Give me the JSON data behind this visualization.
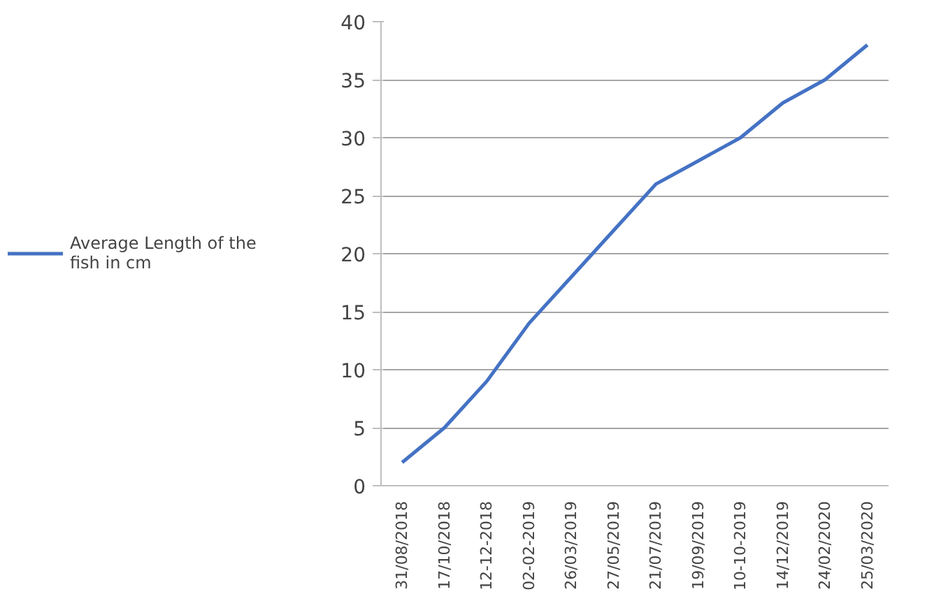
{
  "chart_data": {
    "type": "line",
    "categories": [
      "31/08/2018",
      "17/10/2018",
      "12-12-2018",
      "02-02-2019",
      "26/03/2019",
      "27/05/2019",
      "21/07/2019",
      "19/09/2019",
      "10-10-2019",
      "14/12/2019",
      "24/02/2020",
      "25/03/2020"
    ],
    "series": [
      {
        "name": "Average Length of the fish in cm",
        "color": "#4472c4",
        "values": [
          2,
          5,
          9,
          14,
          18,
          22,
          26,
          28,
          30,
          33,
          35,
          38
        ]
      }
    ],
    "ylim": [
      0,
      40
    ],
    "yticks": [
      0,
      5,
      10,
      15,
      20,
      25,
      30,
      35,
      40
    ],
    "grid": "y",
    "legend": "left",
    "marker": "none",
    "line_style": "solid"
  }
}
